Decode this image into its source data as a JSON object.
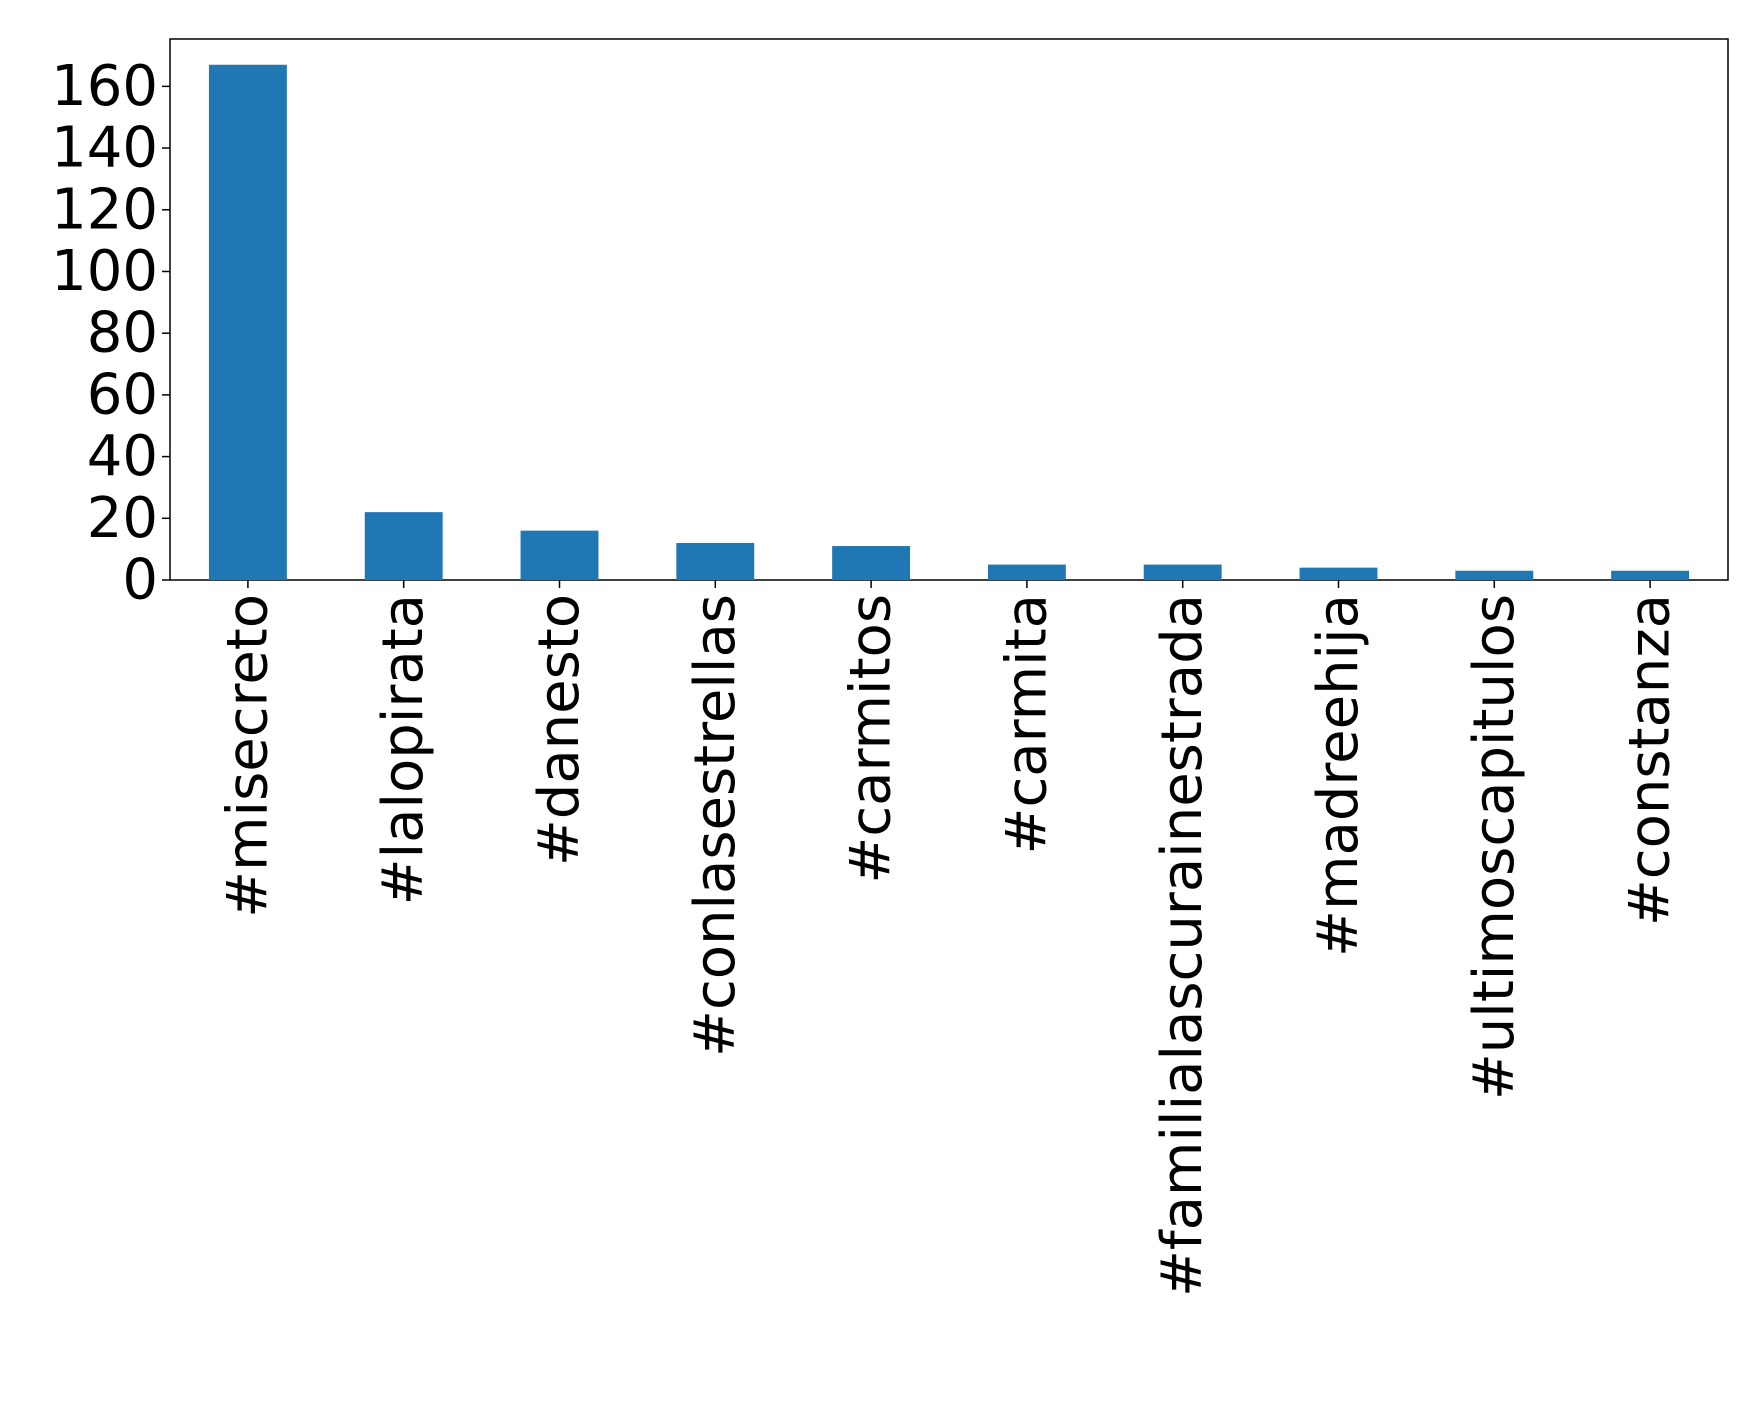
{
  "chart_data": {
    "type": "bar",
    "categories": [
      "#misecreto",
      "#lalopirata",
      "#danesto",
      "#conlasestrellas",
      "#carmitos",
      "#carmita",
      "#familialascurainestrada",
      "#madreehija",
      "#ultimoscapitulos",
      "#constanza"
    ],
    "values": [
      167,
      22,
      16,
      12,
      11,
      5,
      5,
      4,
      3,
      3
    ],
    "color": "#1f77b4",
    "ylim": [
      0,
      175.35
    ],
    "yticks": [
      0,
      20,
      40,
      60,
      80,
      100,
      120,
      140,
      160
    ],
    "grid": false
  }
}
